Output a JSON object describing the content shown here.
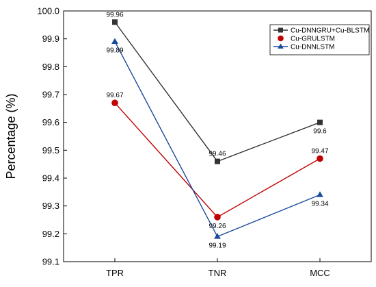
{
  "chart_data": {
    "type": "line",
    "title": "",
    "xlabel": "",
    "ylabel": "Percentage (%)",
    "categories": [
      "TPR",
      "TNR",
      "MCC"
    ],
    "ylim": [
      99.1,
      100.0
    ],
    "yticks": [
      "99.1",
      "99.2",
      "99.3",
      "99.4",
      "99.5",
      "99.6",
      "99.7",
      "99.8",
      "99.9",
      "100.0"
    ],
    "grid": false,
    "legend_position": "top-right",
    "series": [
      {
        "name": "Cu-DNNGRU+Cu-BLSTM",
        "color": "#333333",
        "marker": "square",
        "values": [
          99.96,
          99.46,
          99.6
        ],
        "labels": [
          "99.96",
          "99.46",
          "99.6"
        ]
      },
      {
        "name": "Cu-GRULSTM",
        "color": "#c00000",
        "marker": "circle",
        "values": [
          99.67,
          99.26,
          99.47
        ],
        "labels": [
          "99.67",
          "99.26",
          "99.47"
        ]
      },
      {
        "name": "Cu-DNNLSTM",
        "color": "#1a4a9c",
        "marker": "triangle",
        "values": [
          99.89,
          99.19,
          99.34
        ],
        "labels": [
          "99.89",
          "99.19",
          "99.34"
        ]
      }
    ]
  }
}
